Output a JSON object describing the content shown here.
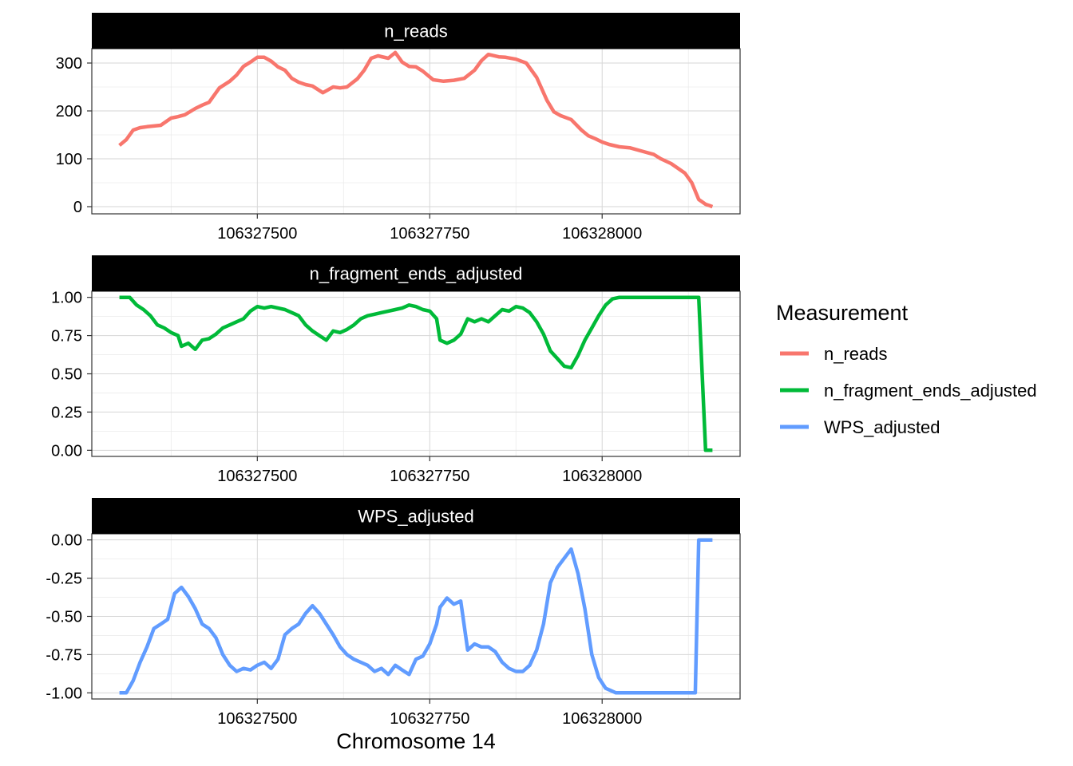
{
  "chart_data": {
    "type": "line",
    "xlabel": "Chromosome 14",
    "xlim": [
      106327260,
      106328200
    ],
    "x_ticks": [
      106327500,
      106327750,
      106328000
    ],
    "x_tick_labels": [
      "106327500",
      "106327750",
      "106328000"
    ],
    "grid": true,
    "legend": {
      "title": "Measurement",
      "position": "right",
      "entries": [
        "n_reads",
        "n_fragment_ends_adjusted",
        "WPS_adjusted"
      ]
    },
    "colors": {
      "n_reads": "#F8766D",
      "n_fragment_ends_adjusted": "#00BA38",
      "WPS_adjusted": "#619CFF"
    },
    "panels": [
      {
        "title": "n_reads",
        "color": "#F8766D",
        "ylim": [
          -15,
          330
        ],
        "y_ticks": [
          0,
          100,
          200,
          300
        ],
        "y_tick_labels": [
          "0",
          "100",
          "200",
          "300"
        ],
        "x": [
          106327300,
          106327310,
          106327320,
          106327330,
          106327340,
          106327360,
          106327375,
          106327385,
          106327395,
          106327410,
          106327420,
          106327430,
          106327445,
          106327460,
          106327470,
          106327480,
          106327490,
          106327500,
          106327510,
          106327520,
          106327530,
          106327540,
          106327550,
          106327560,
          106327570,
          106327580,
          106327595,
          106327610,
          106327620,
          106327630,
          106327645,
          106327655,
          106327665,
          106327675,
          106327690,
          106327700,
          106327710,
          106327720,
          106327730,
          106327740,
          106327755,
          106327770,
          106327785,
          106327800,
          106327815,
          106327825,
          106327835,
          106327850,
          106327860,
          106327875,
          106327890,
          106327905,
          106327920,
          106327930,
          106327940,
          106327955,
          106327970,
          106327980,
          106327990,
          106328000,
          106328010,
          106328025,
          106328040,
          106328060,
          106328075,
          106328085,
          106328100,
          106328110,
          106328120,
          106328130,
          106328140,
          106328150,
          106328160
        ],
        "y": [
          128,
          140,
          160,
          165,
          167,
          170,
          185,
          188,
          192,
          205,
          212,
          218,
          248,
          262,
          275,
          293,
          302,
          312,
          312,
          304,
          292,
          285,
          268,
          260,
          255,
          252,
          238,
          250,
          248,
          250,
          267,
          285,
          310,
          315,
          310,
          322,
          302,
          293,
          292,
          283,
          265,
          262,
          264,
          268,
          285,
          305,
          318,
          313,
          312,
          308,
          300,
          270,
          222,
          198,
          190,
          182,
          160,
          148,
          142,
          135,
          130,
          125,
          123,
          115,
          109,
          100,
          90,
          80,
          70,
          50,
          15,
          5,
          0
        ]
      },
      {
        "title": "n_fragment_ends_adjusted",
        "color": "#00BA38",
        "ylim": [
          -0.04,
          1.04
        ],
        "y_ticks": [
          0.0,
          0.25,
          0.5,
          0.75,
          1.0
        ],
        "y_tick_labels": [
          "0.00",
          "0.25",
          "0.50",
          "0.75",
          "1.00"
        ],
        "x": [
          106327300,
          106327315,
          106327325,
          106327335,
          106327345,
          106327355,
          106327365,
          106327375,
          106327385,
          106327390,
          106327400,
          106327410,
          106327420,
          106327430,
          106327440,
          106327450,
          106327460,
          106327470,
          106327480,
          106327490,
          106327500,
          106327510,
          106327520,
          106327530,
          106327540,
          106327550,
          106327560,
          106327570,
          106327580,
          106327590,
          106327600,
          106327610,
          106327620,
          106327630,
          106327640,
          106327650,
          106327660,
          106327670,
          106327680,
          106327690,
          106327700,
          106327710,
          106327720,
          106327730,
          106327740,
          106327750,
          106327760,
          106327765,
          106327775,
          106327785,
          106327795,
          106327805,
          106327815,
          106327825,
          106327835,
          106327845,
          106327855,
          106327865,
          106327875,
          106327885,
          106327895,
          106327905,
          106327915,
          106327925,
          106327935,
          106327945,
          106327955,
          106327965,
          106327975,
          106327985,
          106327995,
          106328005,
          106328015,
          106328025,
          106328035,
          106328050,
          106328080,
          106328110,
          106328130,
          106328140,
          106328150,
          106328160
        ],
        "y": [
          1.0,
          1.0,
          0.95,
          0.92,
          0.88,
          0.82,
          0.8,
          0.77,
          0.75,
          0.68,
          0.7,
          0.66,
          0.72,
          0.73,
          0.76,
          0.8,
          0.82,
          0.84,
          0.86,
          0.91,
          0.94,
          0.93,
          0.94,
          0.93,
          0.92,
          0.9,
          0.88,
          0.82,
          0.78,
          0.75,
          0.72,
          0.78,
          0.77,
          0.79,
          0.82,
          0.86,
          0.88,
          0.89,
          0.9,
          0.91,
          0.92,
          0.93,
          0.95,
          0.94,
          0.92,
          0.91,
          0.86,
          0.72,
          0.7,
          0.72,
          0.76,
          0.86,
          0.84,
          0.86,
          0.84,
          0.88,
          0.92,
          0.91,
          0.94,
          0.93,
          0.9,
          0.84,
          0.76,
          0.65,
          0.6,
          0.55,
          0.54,
          0.62,
          0.72,
          0.8,
          0.88,
          0.95,
          0.99,
          1.0,
          1.0,
          1.0,
          1.0,
          1.0,
          1.0,
          1.0,
          0.0,
          0.0
        ]
      },
      {
        "title": "WPS_adjusted",
        "color": "#619CFF",
        "ylim": [
          -1.04,
          0.04
        ],
        "y_ticks": [
          0.0,
          -0.25,
          -0.5,
          -0.75,
          -1.0
        ],
        "y_tick_labels": [
          "0.00",
          "-0.25",
          "-0.50",
          "-0.75",
          "-1.00"
        ],
        "x": [
          106327300,
          106327310,
          106327320,
          106327330,
          106327340,
          106327350,
          106327360,
          106327370,
          106327380,
          106327390,
          106327400,
          106327410,
          106327420,
          106327430,
          106327440,
          106327450,
          106327460,
          106327470,
          106327480,
          106327490,
          106327500,
          106327510,
          106327520,
          106327530,
          106327540,
          106327550,
          106327560,
          106327570,
          106327580,
          106327590,
          106327600,
          106327610,
          106327620,
          106327630,
          106327640,
          106327650,
          106327660,
          106327670,
          106327680,
          106327690,
          106327700,
          106327710,
          106327720,
          106327730,
          106327740,
          106327750,
          106327760,
          106327765,
          106327775,
          106327785,
          106327795,
          106327805,
          106327815,
          106327825,
          106327835,
          106327845,
          106327855,
          106327865,
          106327875,
          106327885,
          106327895,
          106327905,
          106327915,
          106327925,
          106327935,
          106327945,
          106327955,
          106327965,
          106327975,
          106327985,
          106327995,
          106328005,
          106328020,
          106328060,
          106328110,
          106328135,
          106328140,
          106328150,
          106328160
        ],
        "y": [
          -1.0,
          -1.0,
          -0.92,
          -0.8,
          -0.7,
          -0.58,
          -0.55,
          -0.52,
          -0.35,
          -0.31,
          -0.37,
          -0.45,
          -0.55,
          -0.58,
          -0.64,
          -0.75,
          -0.82,
          -0.86,
          -0.84,
          -0.85,
          -0.82,
          -0.8,
          -0.84,
          -0.78,
          -0.62,
          -0.58,
          -0.55,
          -0.48,
          -0.43,
          -0.48,
          -0.55,
          -0.62,
          -0.7,
          -0.75,
          -0.78,
          -0.8,
          -0.82,
          -0.86,
          -0.84,
          -0.88,
          -0.82,
          -0.85,
          -0.88,
          -0.78,
          -0.76,
          -0.68,
          -0.55,
          -0.44,
          -0.38,
          -0.42,
          -0.4,
          -0.72,
          -0.68,
          -0.7,
          -0.7,
          -0.73,
          -0.8,
          -0.84,
          -0.86,
          -0.86,
          -0.82,
          -0.72,
          -0.55,
          -0.28,
          -0.18,
          -0.12,
          -0.06,
          -0.22,
          -0.45,
          -0.75,
          -0.9,
          -0.97,
          -1.0,
          -1.0,
          -1.0,
          -1.0,
          0.0,
          0.0,
          0.0
        ]
      }
    ]
  }
}
